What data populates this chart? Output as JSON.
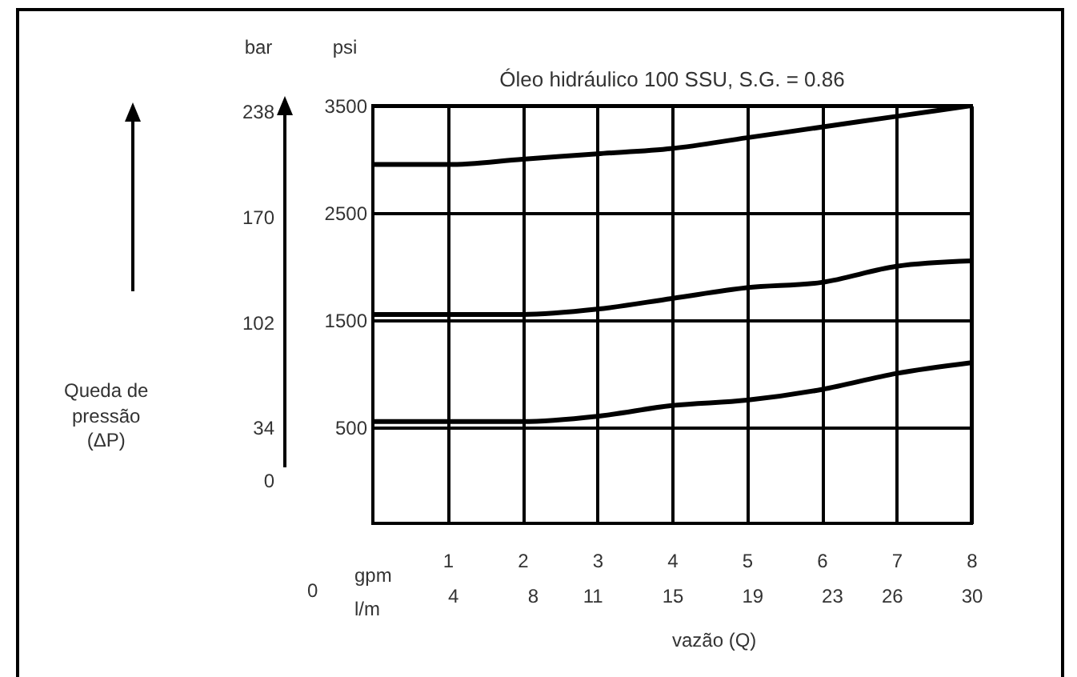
{
  "chart_data": {
    "type": "line",
    "title": "Óleo hidráulico 100 SSU, S.G. = 0.86",
    "xlabel": "gpm",
    "x2label": "l/m",
    "ylabel": "psi",
    "y2label": "bar",
    "annotations": [
      "vazão (Q)",
      "Queda de\npressão\n(ΔP)",
      "0"
    ],
    "x": [
      0,
      1,
      2,
      3,
      4,
      5,
      6,
      7,
      8
    ],
    "xlim": [
      0,
      8
    ],
    "xticks": [
      1,
      2,
      3,
      4,
      5,
      6,
      7,
      8
    ],
    "x2lim": [
      0,
      30
    ],
    "x2ticks": [
      4,
      8,
      11,
      15,
      19,
      23,
      26,
      30
    ],
    "ylim": [
      -400,
      3500
    ],
    "yticks": [
      500,
      1500,
      2500,
      3500
    ],
    "y2lim": [
      -27.6,
      241.4
    ],
    "y2ticks": [
      0,
      34,
      102,
      170,
      238
    ],
    "grid": true,
    "line_style": "solid",
    "marker": "none",
    "series": [
      {
        "color": "#000000",
        "values": [
          2950,
          2950,
          3000,
          3050,
          3100,
          3200,
          3300,
          3400,
          3500
        ]
      },
      {
        "color": "#000000",
        "values": [
          1550,
          1550,
          1550,
          1600,
          1700,
          1800,
          1850,
          2000,
          2050
        ]
      },
      {
        "color": "#000000",
        "values": [
          550,
          550,
          550,
          600,
          700,
          750,
          850,
          1000,
          1100
        ]
      }
    ]
  }
}
